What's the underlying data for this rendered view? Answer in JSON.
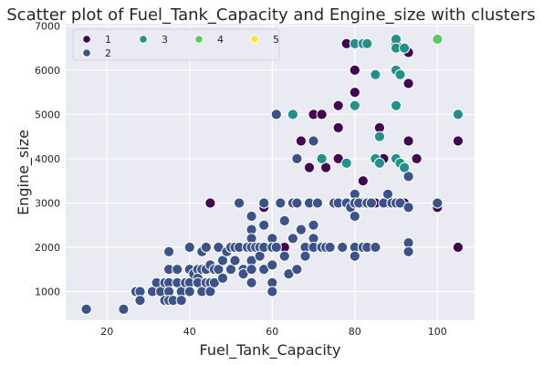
{
  "chart_data": {
    "type": "scatter",
    "title": "Scatter plot of Fuel_Tank_Capacity and Engine_size with clusters",
    "xlabel": "Fuel_Tank_Capacity",
    "ylabel": "Engine_size",
    "xlim": [
      10,
      109
    ],
    "ylim": [
      350,
      7050
    ],
    "xticks": [
      20,
      40,
      60,
      80,
      100
    ],
    "yticks": [
      1000,
      2000,
      3000,
      4000,
      5000,
      6000,
      7000
    ],
    "grid": true,
    "legend_position": "top-left",
    "series": [
      {
        "name": "1",
        "color": "#440154",
        "points": [
          [
            45,
            3000
          ],
          [
            58,
            2900
          ],
          [
            63,
            2000
          ],
          [
            65,
            3000
          ],
          [
            66,
            3000
          ],
          [
            67,
            4400
          ],
          [
            69,
            3800
          ],
          [
            70,
            5000
          ],
          [
            72,
            5000
          ],
          [
            73,
            3800
          ],
          [
            75,
            3000
          ],
          [
            76,
            4000
          ],
          [
            76,
            4700
          ],
          [
            76,
            5200
          ],
          [
            78,
            6600
          ],
          [
            78,
            3000
          ],
          [
            80,
            6000
          ],
          [
            80,
            5500
          ],
          [
            80,
            3000
          ],
          [
            81,
            3000
          ],
          [
            82,
            3500
          ],
          [
            82,
            3000
          ],
          [
            85,
            3000
          ],
          [
            86,
            4700
          ],
          [
            87,
            4000
          ],
          [
            88,
            3000
          ],
          [
            90,
            6600
          ],
          [
            90,
            6000
          ],
          [
            90,
            3000
          ],
          [
            92,
            3000
          ],
          [
            93,
            6400
          ],
          [
            93,
            5700
          ],
          [
            93,
            4400
          ],
          [
            93,
            2900
          ],
          [
            95,
            4000
          ],
          [
            100,
            2900
          ],
          [
            105,
            4400
          ],
          [
            105,
            2000
          ]
        ]
      },
      {
        "name": "2",
        "color": "#3b528b",
        "points": [
          [
            15,
            600
          ],
          [
            24,
            600
          ],
          [
            27,
            1000
          ],
          [
            28,
            1000
          ],
          [
            28,
            800
          ],
          [
            31,
            1000
          ],
          [
            32,
            1200
          ],
          [
            33,
            1000
          ],
          [
            34,
            1200
          ],
          [
            34,
            800
          ],
          [
            35,
            1900
          ],
          [
            35,
            1500
          ],
          [
            35,
            1200
          ],
          [
            35,
            1000
          ],
          [
            35,
            800
          ],
          [
            36,
            800
          ],
          [
            37,
            1500
          ],
          [
            37,
            1200
          ],
          [
            38,
            1000
          ],
          [
            38,
            800
          ],
          [
            39,
            1200
          ],
          [
            40,
            2000
          ],
          [
            40,
            1500
          ],
          [
            40,
            1200
          ],
          [
            40,
            1000
          ],
          [
            41,
            1400
          ],
          [
            42,
            1500
          ],
          [
            42,
            1300
          ],
          [
            42,
            1200
          ],
          [
            43,
            1900
          ],
          [
            43,
            1500
          ],
          [
            43,
            1000
          ],
          [
            44,
            2000
          ],
          [
            44,
            1500
          ],
          [
            44,
            1200
          ],
          [
            45,
            1600
          ],
          [
            45,
            1200
          ],
          [
            45,
            1000
          ],
          [
            46,
            1500
          ],
          [
            46,
            1200
          ],
          [
            47,
            2000
          ],
          [
            47,
            1500
          ],
          [
            48,
            1700
          ],
          [
            48,
            1300
          ],
          [
            49,
            1900
          ],
          [
            50,
            2000
          ],
          [
            50,
            1500
          ],
          [
            51,
            2000
          ],
          [
            51,
            1700
          ],
          [
            52,
            3000
          ],
          [
            52,
            2000
          ],
          [
            53,
            1500
          ],
          [
            53,
            1400
          ],
          [
            54,
            2000
          ],
          [
            55,
            2700
          ],
          [
            55,
            2400
          ],
          [
            55,
            2200
          ],
          [
            55,
            2000
          ],
          [
            55,
            1700
          ],
          [
            55,
            1500
          ],
          [
            55,
            1200
          ],
          [
            56,
            2000
          ],
          [
            57,
            2000
          ],
          [
            57,
            1800
          ],
          [
            58,
            3000
          ],
          [
            58,
            2500
          ],
          [
            58,
            2000
          ],
          [
            58,
            1500
          ],
          [
            60,
            2200
          ],
          [
            60,
            2000
          ],
          [
            60,
            1600
          ],
          [
            60,
            1200
          ],
          [
            60,
            1000
          ],
          [
            61,
            5000
          ],
          [
            61,
            2000
          ],
          [
            62,
            3000
          ],
          [
            63,
            2600
          ],
          [
            63,
            1800
          ],
          [
            64,
            1400
          ],
          [
            65,
            3000
          ],
          [
            65,
            2200
          ],
          [
            66,
            4000
          ],
          [
            66,
            3000
          ],
          [
            66,
            1500
          ],
          [
            67,
            2400
          ],
          [
            68,
            2000
          ],
          [
            68,
            1800
          ],
          [
            69,
            3000
          ],
          [
            70,
            4400
          ],
          [
            70,
            2500
          ],
          [
            70,
            2200
          ],
          [
            70,
            2000
          ],
          [
            71,
            3000
          ],
          [
            72,
            2000
          ],
          [
            73,
            2000
          ],
          [
            74,
            2000
          ],
          [
            75,
            3000
          ],
          [
            76,
            3000
          ],
          [
            77,
            2000
          ],
          [
            78,
            3000
          ],
          [
            79,
            2900
          ],
          [
            80,
            3200
          ],
          [
            80,
            3000
          ],
          [
            80,
            2700
          ],
          [
            80,
            2000
          ],
          [
            80,
            1800
          ],
          [
            81,
            3000
          ],
          [
            82,
            2000
          ],
          [
            83,
            3000
          ],
          [
            83,
            2000
          ],
          [
            84,
            3000
          ],
          [
            85,
            2000
          ],
          [
            87,
            3000
          ],
          [
            88,
            3200
          ],
          [
            89,
            3000
          ],
          [
            90,
            5200
          ],
          [
            90,
            3000
          ],
          [
            91,
            3000
          ],
          [
            93,
            3600
          ],
          [
            93,
            2900
          ],
          [
            93,
            2100
          ],
          [
            93,
            1900
          ],
          [
            100,
            3000
          ]
        ]
      },
      {
        "name": "3",
        "color": "#21918c",
        "points": [
          [
            65,
            5000
          ],
          [
            72,
            4000
          ],
          [
            78,
            3900
          ],
          [
            80,
            6600
          ],
          [
            80,
            5200
          ],
          [
            82,
            6600
          ],
          [
            83,
            6600
          ],
          [
            85,
            5900
          ],
          [
            85,
            4000
          ],
          [
            86,
            4500
          ],
          [
            86,
            3900
          ],
          [
            90,
            6700
          ],
          [
            90,
            6500
          ],
          [
            90,
            6000
          ],
          [
            90,
            5200
          ],
          [
            90,
            4000
          ],
          [
            91,
            3900
          ],
          [
            91,
            5900
          ],
          [
            92,
            6500
          ],
          [
            92,
            3800
          ],
          [
            105,
            5000
          ]
        ]
      },
      {
        "name": "4",
        "color": "#5ec962",
        "points": [
          [
            100,
            6700
          ]
        ]
      },
      {
        "name": "5",
        "color": "#fde725",
        "points": []
      }
    ]
  }
}
